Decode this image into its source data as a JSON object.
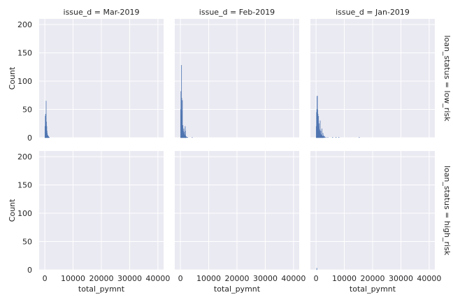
{
  "colors": {
    "panel_bg": "#eaeaf2",
    "grid": "#ffffff",
    "bar": "#4c72b0",
    "text": "#262626"
  },
  "chart_data": {
    "type": "bar",
    "subtype": "histogram",
    "facet_grid": {
      "rows": 2,
      "cols": 3,
      "col_titles": [
        "issue_d = Mar-2019",
        "issue_d = Feb-2019",
        "issue_d = Jan-2019"
      ],
      "row_titles": [
        "loan_status = low_risk",
        "loan_status = high_risk"
      ]
    },
    "xlabel": "total_pymnt",
    "ylabel": "Count",
    "xlim": [
      -2000,
      42000
    ],
    "ylim": [
      0,
      210
    ],
    "xticks": [
      0,
      10000,
      20000,
      30000,
      40000
    ],
    "xtick_labels": [
      "0",
      "10000",
      "20000",
      "30000",
      "40000"
    ],
    "yticks": [
      0,
      50,
      100,
      150,
      200
    ],
    "ytick_labels": [
      "0",
      "50",
      "100",
      "150",
      "200"
    ],
    "grid": true,
    "bin_width": 100,
    "panels": [
      {
        "row": 0,
        "col": 0,
        "bins": [
          {
            "x": 0,
            "count": 20
          },
          {
            "x": 100,
            "count": 38
          },
          {
            "x": 200,
            "count": 41
          },
          {
            "x": 300,
            "count": 42
          },
          {
            "x": 400,
            "count": 65
          },
          {
            "x": 500,
            "count": 28
          },
          {
            "x": 600,
            "count": 20
          },
          {
            "x": 700,
            "count": 12
          },
          {
            "x": 800,
            "count": 8
          },
          {
            "x": 900,
            "count": 5
          },
          {
            "x": 1000,
            "count": 4
          },
          {
            "x": 1100,
            "count": 3
          },
          {
            "x": 1200,
            "count": 2
          },
          {
            "x": 1300,
            "count": 2
          },
          {
            "x": 1500,
            "count": 1
          }
        ]
      },
      {
        "row": 0,
        "col": 1,
        "bins": [
          {
            "x": 0,
            "count": 50
          },
          {
            "x": 100,
            "count": 82
          },
          {
            "x": 200,
            "count": 40
          },
          {
            "x": 300,
            "count": 128
          },
          {
            "x": 400,
            "count": 70
          },
          {
            "x": 500,
            "count": 48
          },
          {
            "x": 600,
            "count": 66
          },
          {
            "x": 700,
            "count": 20
          },
          {
            "x": 800,
            "count": 22
          },
          {
            "x": 900,
            "count": 12
          },
          {
            "x": 1000,
            "count": 8
          },
          {
            "x": 1100,
            "count": 16
          },
          {
            "x": 1200,
            "count": 6
          },
          {
            "x": 1300,
            "count": 10
          },
          {
            "x": 1400,
            "count": 5
          },
          {
            "x": 1500,
            "count": 4
          },
          {
            "x": 1600,
            "count": 20
          },
          {
            "x": 1700,
            "count": 12
          },
          {
            "x": 1800,
            "count": 3
          },
          {
            "x": 1900,
            "count": 2
          },
          {
            "x": 2000,
            "count": 2
          },
          {
            "x": 2200,
            "count": 1
          },
          {
            "x": 2500,
            "count": 1
          },
          {
            "x": 4100,
            "count": 1
          }
        ]
      },
      {
        "row": 0,
        "col": 2,
        "bins": [
          {
            "x": 0,
            "count": 20
          },
          {
            "x": 100,
            "count": 45
          },
          {
            "x": 200,
            "count": 50
          },
          {
            "x": 300,
            "count": 73
          },
          {
            "x": 400,
            "count": 74
          },
          {
            "x": 500,
            "count": 50
          },
          {
            "x": 600,
            "count": 42
          },
          {
            "x": 700,
            "count": 30
          },
          {
            "x": 800,
            "count": 38
          },
          {
            "x": 900,
            "count": 20
          },
          {
            "x": 1000,
            "count": 25
          },
          {
            "x": 1100,
            "count": 12
          },
          {
            "x": 1200,
            "count": 9
          },
          {
            "x": 1300,
            "count": 15
          },
          {
            "x": 1400,
            "count": 30
          },
          {
            "x": 1500,
            "count": 8
          },
          {
            "x": 1600,
            "count": 12
          },
          {
            "x": 1700,
            "count": 6
          },
          {
            "x": 1800,
            "count": 5
          },
          {
            "x": 1900,
            "count": 4
          },
          {
            "x": 2000,
            "count": 16
          },
          {
            "x": 2100,
            "count": 3
          },
          {
            "x": 2200,
            "count": 3
          },
          {
            "x": 2300,
            "count": 2
          },
          {
            "x": 2400,
            "count": 8
          },
          {
            "x": 2500,
            "count": 4
          },
          {
            "x": 2600,
            "count": 2
          },
          {
            "x": 2800,
            "count": 3
          },
          {
            "x": 3000,
            "count": 2
          },
          {
            "x": 3400,
            "count": 1
          },
          {
            "x": 4100,
            "count": 1
          },
          {
            "x": 5800,
            "count": 1
          },
          {
            "x": 7000,
            "count": 1
          },
          {
            "x": 8000,
            "count": 1
          },
          {
            "x": 15200,
            "count": 1
          }
        ]
      },
      {
        "row": 1,
        "col": 0,
        "bins": []
      },
      {
        "row": 1,
        "col": 1,
        "bins": []
      },
      {
        "row": 1,
        "col": 2,
        "bins": [
          {
            "x": 200,
            "count": 3
          }
        ]
      }
    ]
  }
}
